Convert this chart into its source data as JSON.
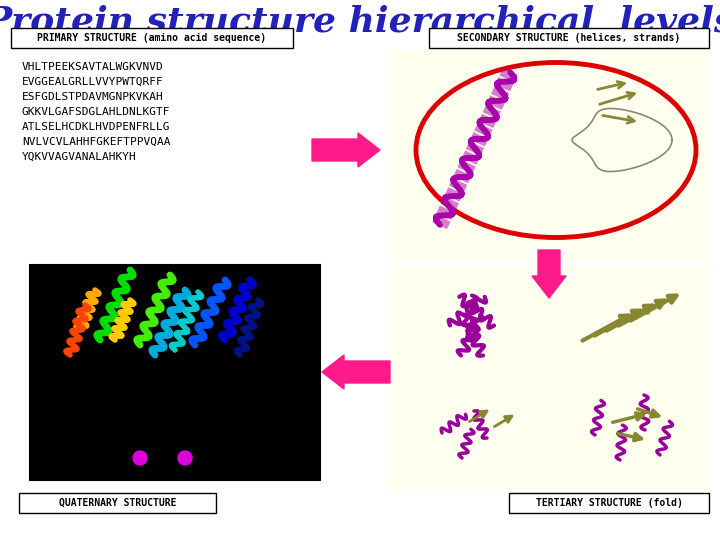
{
  "title": "Protein structure hierarchical  levels",
  "title_color": "#2222bb",
  "title_fontsize": 26,
  "bg_color": "#ffffff",
  "label_primary": "PRIMARY STRUCTURE (amino acid sequence)",
  "label_secondary": "SECONDARY STRUCTURE (helices, strands)",
  "label_quaternary": "QUATERNARY STRUCTURE",
  "label_tertiary": "TERTIARY STRUCTURE (fold)",
  "sequence_lines": [
    "VHLTPEEKSAVTALWGKVNVD",
    "EVGGEALGRLLVVYPWTQRFF",
    "ESFGDLSTPDAVMGNPKVKAH",
    "GKKVLGAFSDGLAHLDNLKGTF",
    "ATLSELHCDKLHVDPENFRLLG",
    "NVLVCVLAHHFGKEFTPPVQAA",
    "YQKVVAGVANALAHKYH"
  ],
  "right_panel_bg": "#fffff0",
  "arrow_color": "#ff1a8c",
  "ellipse_color": "#dd0000",
  "helix_color": "#aa00aa",
  "strand_color": "#888855",
  "olive_color": "#888833",
  "purple_color": "#990099",
  "sequence_fontsize": 8,
  "label_fontsize": 7
}
